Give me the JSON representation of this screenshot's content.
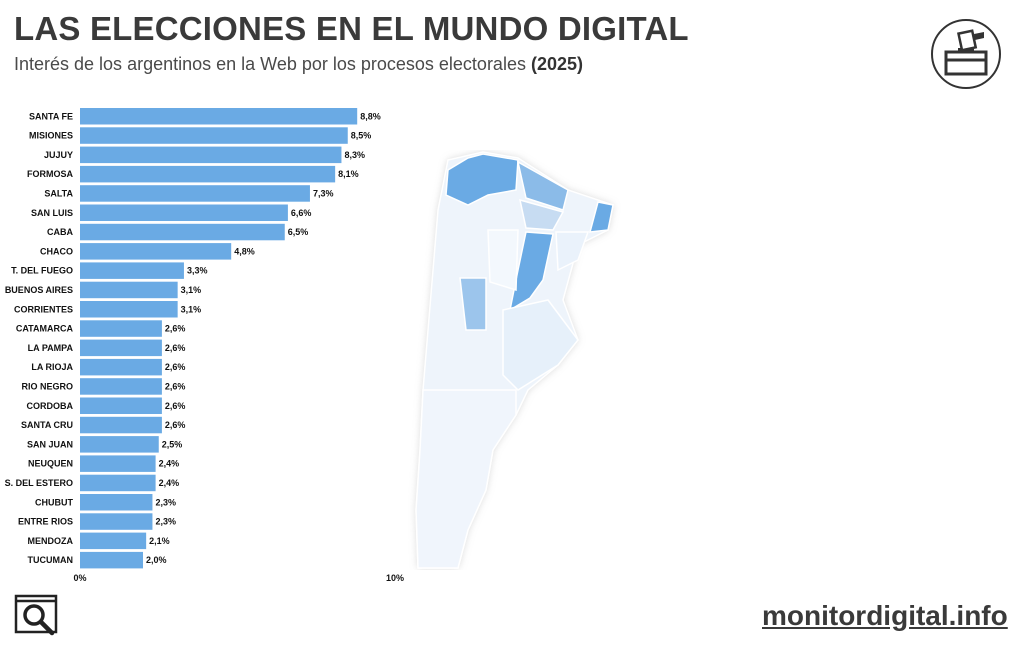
{
  "header": {
    "title": "LAS ELECCIONES EN EL MUNDO DIGITAL",
    "subtitle": "Interés de los argentinos en la Web por los procesos electorales",
    "year": "(2025)"
  },
  "footer": {
    "site": "monitordigital.info"
  },
  "icons": {
    "top_right": "ballot-box-icon",
    "bottom_left": "search-icon"
  },
  "colors": {
    "bar": "#6aaae4",
    "label": "#111111",
    "map_dark": "#6aaae4",
    "map_light": "#eaf2fb"
  },
  "chart_data": {
    "type": "bar",
    "orientation": "horizontal",
    "categories": [
      "SANTA FE",
      "MISIONES",
      "JUJUY",
      "FORMOSA",
      "SALTA",
      "SAN LUIS",
      "CABA",
      "CHACO",
      "T. DEL FUEGO",
      "BUENOS AIRES",
      "CORRIENTES",
      "CATAMARCA",
      "LA PAMPA",
      "LA RIOJA",
      "RIO NEGRO",
      "CORDOBA",
      "SANTA CRU",
      "SAN JUAN",
      "NEUQUEN",
      "S. DEL ESTERO",
      "CHUBUT",
      "ENTRE RIOS",
      "MENDOZA",
      "TUCUMAN"
    ],
    "values": [
      8.8,
      8.5,
      8.3,
      8.1,
      7.3,
      6.6,
      6.5,
      4.8,
      3.3,
      3.1,
      3.1,
      2.6,
      2.6,
      2.6,
      2.6,
      2.6,
      2.6,
      2.5,
      2.4,
      2.4,
      2.3,
      2.3,
      2.1,
      2.0
    ],
    "data_labels": [
      "8,8%",
      "8,5%",
      "8,3%",
      "8,1%",
      "7,3%",
      "6,6%",
      "6,5%",
      "4,8%",
      "3,3%",
      "3,1%",
      "3,1%",
      "2,6%",
      "2,6%",
      "2,6%",
      "2,6%",
      "2,6%",
      "2,6%",
      "2,5%",
      "2,4%",
      "2,4%",
      "2,3%",
      "2,3%",
      "2,1%",
      "2,0%"
    ],
    "xlim": [
      0,
      10
    ],
    "x_ticks": [
      "0%",
      "10%"
    ],
    "grid": false,
    "legend": "none"
  }
}
